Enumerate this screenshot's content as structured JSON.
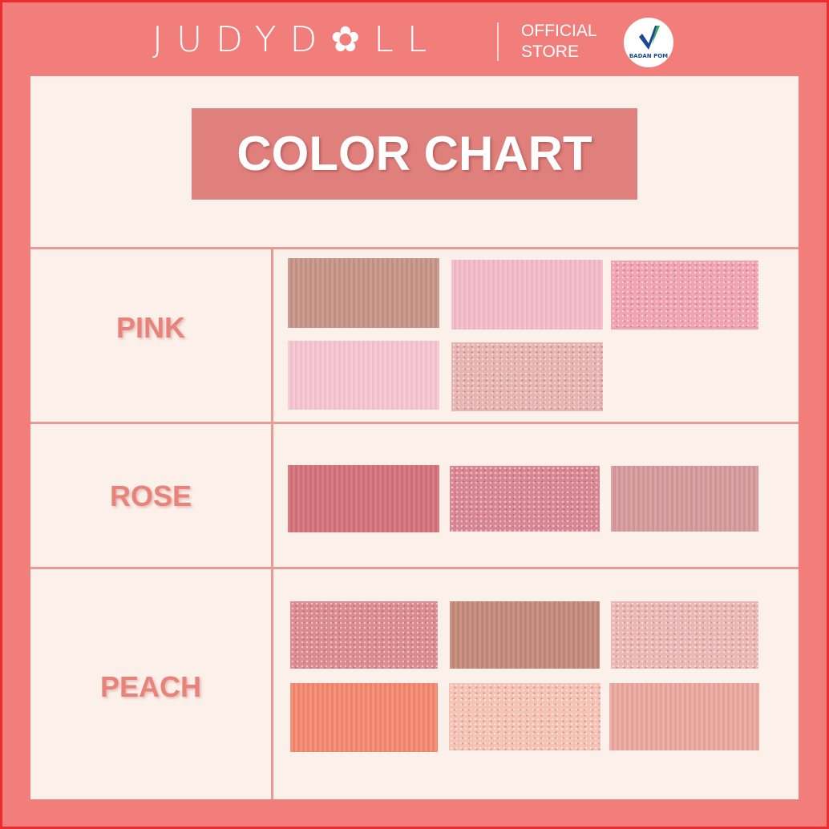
{
  "header": {
    "brand": "JUDYD✿LL",
    "store_line1": "OFFICIAL",
    "store_line2": "STORE",
    "badge": "BADAN POM"
  },
  "title": "COLOR CHART",
  "categories": [
    {
      "label": "PINK",
      "swatches": [
        "#c99489",
        "#f5bccb",
        "#f0a3b2",
        "#f7c6d3",
        "#e6b4b1"
      ]
    },
    {
      "label": "ROSE",
      "swatches": [
        "#d5727a",
        "#d98693",
        "#d69a9c"
      ]
    },
    {
      "label": "PEACH",
      "swatches": [
        "#db8c92",
        "#c58a7a",
        "#eab7b4",
        "#f4896e",
        "#f5c3b4",
        "#eca99e"
      ]
    }
  ],
  "colors": {
    "frame": "#f27e7c",
    "panel": "#fcf1ea",
    "title_bg": "#e0807c",
    "label": "#e8837c"
  }
}
